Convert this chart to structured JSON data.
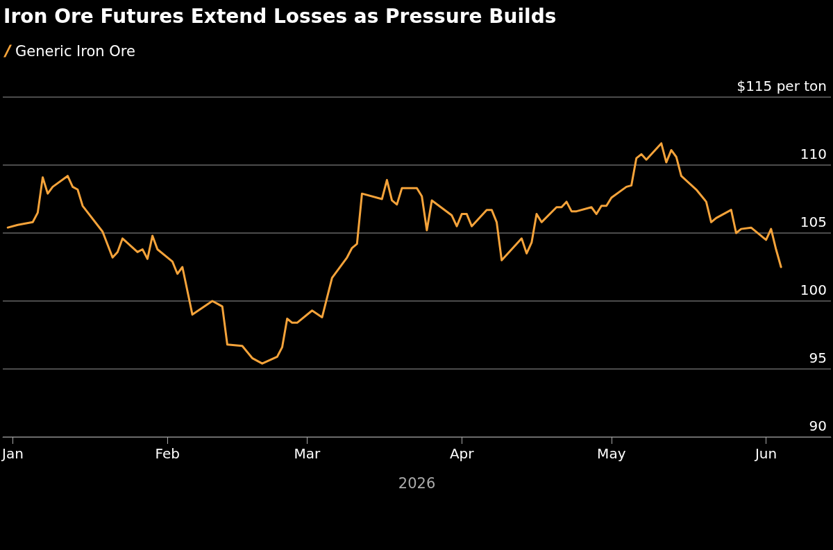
{
  "chart_data": {
    "type": "line",
    "title": "Iron Ore Futures Extend Losses as Pressure Builds",
    "xlabel": "2026",
    "x": [
      "2025-12-31",
      "2026-01-02",
      "2026-01-05",
      "2026-01-06",
      "2026-01-07",
      "2026-01-08",
      "2026-01-09",
      "2026-01-12",
      "2026-01-13",
      "2026-01-14",
      "2026-01-15",
      "2026-01-19",
      "2026-01-21",
      "2026-01-22",
      "2026-01-23",
      "2026-01-26",
      "2026-01-27",
      "2026-01-28",
      "2026-01-29",
      "2026-01-30",
      "2026-02-02",
      "2026-02-03",
      "2026-02-04",
      "2026-02-06",
      "2026-02-10",
      "2026-02-11",
      "2026-02-12",
      "2026-02-13",
      "2026-02-16",
      "2026-02-18",
      "2026-02-20",
      "2026-02-23",
      "2026-02-24",
      "2026-02-25",
      "2026-02-26",
      "2026-02-27",
      "2026-03-02",
      "2026-03-04",
      "2026-03-06",
      "2026-03-09",
      "2026-03-10",
      "2026-03-11",
      "2026-03-12",
      "2026-03-16",
      "2026-03-17",
      "2026-03-18",
      "2026-03-19",
      "2026-03-20",
      "2026-03-23",
      "2026-03-24",
      "2026-03-25",
      "2026-03-26",
      "2026-03-30",
      "2026-03-31",
      "2026-04-01",
      "2026-04-02",
      "2026-04-03",
      "2026-04-06",
      "2026-04-07",
      "2026-04-08",
      "2026-04-09",
      "2026-04-13",
      "2026-04-14",
      "2026-04-15",
      "2026-04-16",
      "2026-04-17",
      "2026-04-20",
      "2026-04-21",
      "2026-04-22",
      "2026-04-23",
      "2026-04-24",
      "2026-04-27",
      "2026-04-28",
      "2026-04-29",
      "2026-04-30",
      "2026-05-01",
      "2026-05-04",
      "2026-05-05",
      "2026-05-06",
      "2026-05-07",
      "2026-05-08",
      "2026-05-11",
      "2026-05-12",
      "2026-05-13",
      "2026-05-14",
      "2026-05-15",
      "2026-05-18",
      "2026-05-20",
      "2026-05-21",
      "2026-05-22",
      "2026-05-25",
      "2026-05-26",
      "2026-05-27",
      "2026-05-29",
      "2026-06-01",
      "2026-06-02",
      "2026-06-03",
      "2026-06-04"
    ],
    "series": [
      {
        "name": "Generic Iron Ore",
        "color": "#f5a33a",
        "values": [
          105.4,
          105.6,
          105.8,
          106.5,
          109.1,
          107.9,
          108.4,
          109.2,
          108.4,
          108.2,
          107.0,
          105.1,
          103.2,
          103.6,
          104.6,
          103.6,
          103.8,
          103.1,
          104.8,
          103.8,
          102.9,
          102.0,
          102.5,
          99.0,
          100.0,
          99.8,
          99.6,
          96.8,
          96.7,
          95.8,
          95.4,
          95.9,
          96.6,
          98.7,
          98.4,
          98.4,
          99.3,
          98.8,
          101.7,
          103.2,
          103.9,
          104.2,
          107.9,
          107.5,
          108.9,
          107.4,
          107.1,
          108.3,
          108.3,
          107.7,
          105.2,
          107.4,
          106.3,
          105.5,
          106.4,
          106.4,
          105.5,
          106.7,
          106.7,
          105.8,
          103.0,
          104.6,
          103.5,
          104.3,
          106.4,
          105.8,
          106.9,
          106.9,
          107.3,
          106.6,
          106.6,
          106.9,
          106.4,
          107.0,
          107.0,
          107.6,
          108.4,
          108.5,
          110.5,
          110.8,
          110.4,
          111.6,
          110.2,
          111.1,
          110.6,
          109.2,
          108.2,
          107.3,
          105.8,
          106.1,
          106.7,
          105.0,
          105.3,
          105.4,
          104.5,
          105.3,
          103.8,
          102.5
        ]
      }
    ],
    "xlim": [
      "2025-12-30",
      "2026-06-14"
    ],
    "xticks": [
      {
        "value": "2026-01-01",
        "label": "Jan"
      },
      {
        "value": "2026-02-01",
        "label": "Feb"
      },
      {
        "value": "2026-03-01",
        "label": "Mar"
      },
      {
        "value": "2026-04-01",
        "label": "Apr"
      },
      {
        "value": "2026-05-01",
        "label": "May"
      },
      {
        "value": "2026-06-01",
        "label": "Jun"
      }
    ],
    "ylim": [
      90,
      115
    ],
    "yticks": [
      90,
      95,
      100,
      105,
      110,
      {
        "value": 115,
        "label": "$115 per ton"
      }
    ],
    "grid": "y",
    "legend": "top left",
    "marker": "none",
    "line_style": "solid"
  }
}
